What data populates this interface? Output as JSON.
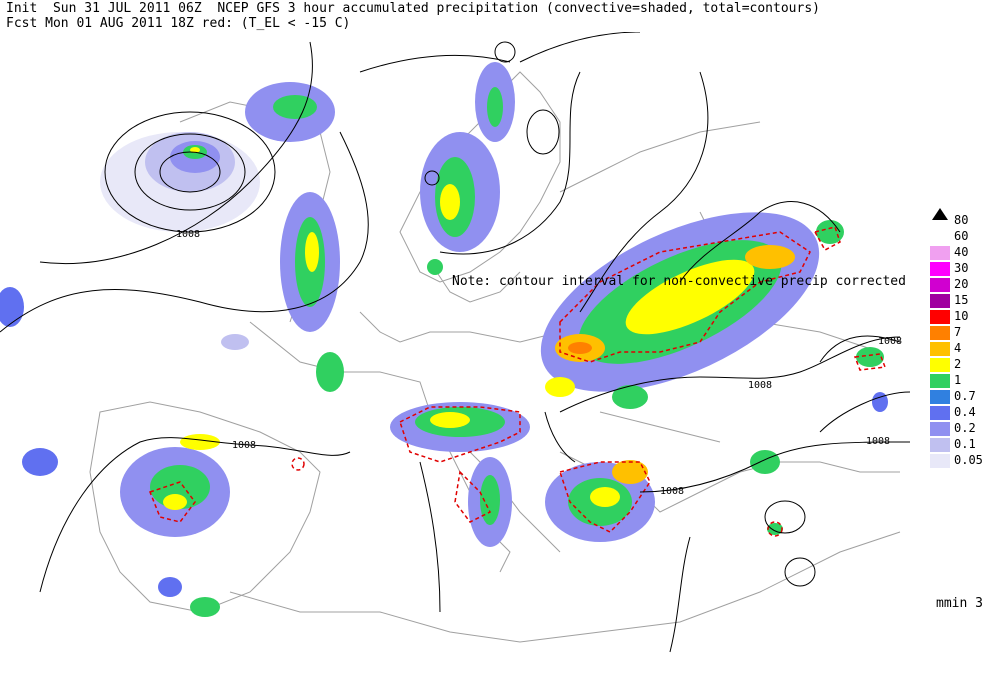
{
  "header": {
    "line1": "Init  Sun 31 JUL 2011 06Z  NCEP GFS 3 hour accumulated precipitation (convective=shaded, total=contours)",
    "line2": "Fcst Mon 01 AUG 2011 18Z red: (T_EL < -15 C)"
  },
  "note": "Note: contour interval for non-convective precip corrected",
  "units": "mmin 3",
  "legend": {
    "top_marker": "80",
    "items": [
      {
        "label": "60",
        "color": "#ffffff"
      },
      {
        "label": "40",
        "color": "#f0a0f0"
      },
      {
        "label": "30",
        "color": "#ff00ff"
      },
      {
        "label": "20",
        "color": "#d000d0"
      },
      {
        "label": "15",
        "color": "#a000a0"
      },
      {
        "label": "10",
        "color": "#ff0000"
      },
      {
        "label": "7",
        "color": "#ff8000"
      },
      {
        "label": "4",
        "color": "#ffc000"
      },
      {
        "label": "2",
        "color": "#ffff00"
      },
      {
        "label": "1",
        "color": "#30d060"
      },
      {
        "label": "0.7",
        "color": "#3080e0"
      },
      {
        "label": "0.4",
        "color": "#6070f0"
      },
      {
        "label": "0.2",
        "color": "#9090f0"
      },
      {
        "label": "0.1",
        "color": "#c0c0f0"
      },
      {
        "label": "0.05",
        "color": "#e8e8f8"
      }
    ]
  },
  "isobar_labels": [
    {
      "id": "iso1",
      "text": "1008"
    },
    {
      "id": "iso2",
      "text": "1008"
    },
    {
      "id": "iso3",
      "text": "1008"
    },
    {
      "id": "iso4",
      "text": "1008"
    },
    {
      "id": "iso5",
      "text": "1008"
    },
    {
      "id": "iso6",
      "text": "1008"
    }
  ],
  "colors": {
    "coast": "#a0a0a0",
    "isobar": "#000000",
    "cold_top": "#e00000"
  }
}
